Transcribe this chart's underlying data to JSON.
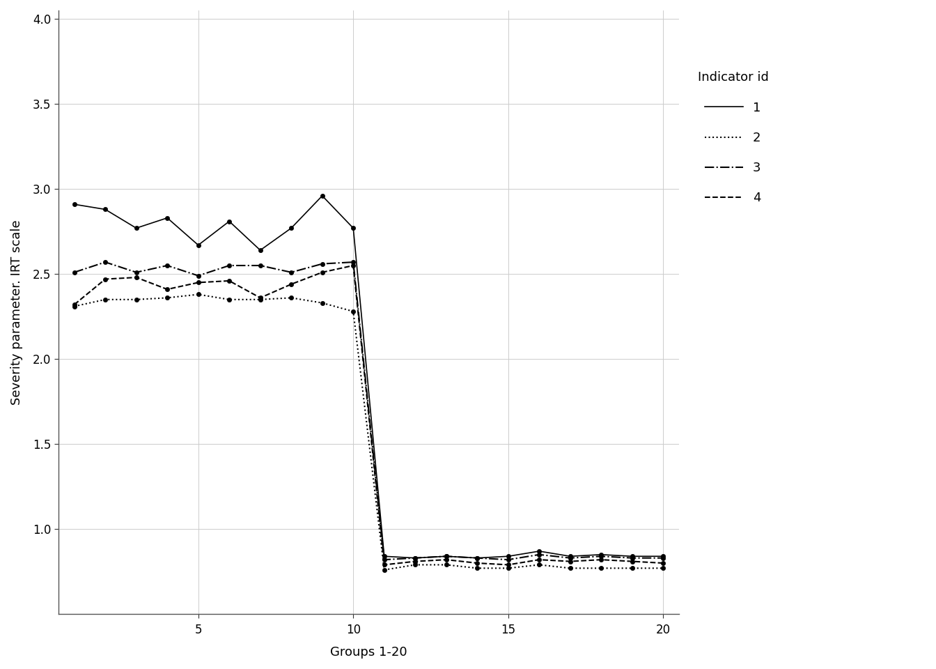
{
  "title": "",
  "xlabel": "Groups 1-20",
  "ylabel": "Severity parameter. IRT scale",
  "xlim": [
    0.5,
    20.5
  ],
  "ylim": [
    0.5,
    4.05
  ],
  "yticks": [
    1.0,
    1.5,
    2.0,
    2.5,
    3.0,
    3.5,
    4.0
  ],
  "xticks": [
    5,
    10,
    15,
    20
  ],
  "background_color": "#ffffff",
  "plot_bg_color": "#ffffff",
  "grid_color": "#cccccc",
  "line_color": "#000000",
  "legend_title": "Indicator id",
  "series": [
    {
      "id": "1",
      "linestyle": "solid",
      "linewidth": 1.2,
      "marker": "o",
      "markersize": 4.5,
      "values": [
        2.91,
        2.88,
        2.77,
        2.83,
        2.67,
        2.81,
        2.64,
        2.77,
        2.96,
        2.77,
        0.84,
        0.83,
        0.84,
        0.83,
        0.84,
        0.87,
        0.84,
        0.85,
        0.84,
        0.84
      ]
    },
    {
      "id": "2",
      "linestyle": "dotted",
      "linewidth": 1.5,
      "marker": "o",
      "markersize": 4.5,
      "values": [
        2.31,
        2.35,
        2.35,
        2.36,
        2.38,
        2.35,
        2.35,
        2.36,
        2.33,
        2.28,
        0.76,
        0.79,
        0.79,
        0.77,
        0.77,
        0.79,
        0.77,
        0.77,
        0.77,
        0.77
      ]
    },
    {
      "id": "3",
      "linestyle": "dashdot",
      "linewidth": 1.5,
      "marker": "o",
      "markersize": 4.5,
      "values": [
        2.51,
        2.57,
        2.51,
        2.55,
        2.49,
        2.55,
        2.55,
        2.51,
        2.56,
        2.57,
        0.82,
        0.83,
        0.84,
        0.83,
        0.82,
        0.85,
        0.83,
        0.84,
        0.83,
        0.83
      ]
    },
    {
      "id": "4",
      "linestyle": "dashed",
      "linewidth": 1.5,
      "marker": "o",
      "markersize": 4.5,
      "values": [
        2.32,
        2.47,
        2.48,
        2.41,
        2.45,
        2.46,
        2.36,
        2.44,
        2.51,
        2.55,
        0.79,
        0.81,
        0.82,
        0.8,
        0.79,
        0.82,
        0.81,
        0.82,
        0.81,
        0.8
      ]
    }
  ]
}
